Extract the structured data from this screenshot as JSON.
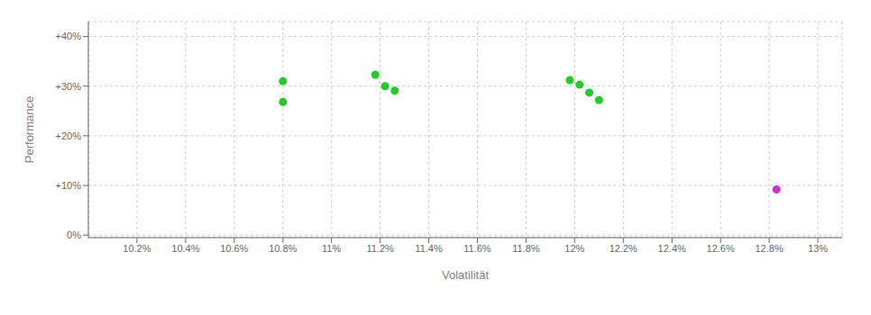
{
  "chart_data": {
    "type": "scatter",
    "xlabel": "Volatilität",
    "ylabel": "Performance",
    "xlim": [
      0.1,
      0.131
    ],
    "ylim": [
      -0.005,
      0.43
    ],
    "xticks": [
      {
        "value": 0.102,
        "label": "10.2%"
      },
      {
        "value": 0.104,
        "label": "10.4%"
      },
      {
        "value": 0.106,
        "label": "10.6%"
      },
      {
        "value": 0.108,
        "label": "10.8%"
      },
      {
        "value": 0.11,
        "label": "11%"
      },
      {
        "value": 0.112,
        "label": "11.2%"
      },
      {
        "value": 0.114,
        "label": "11.4%"
      },
      {
        "value": 0.116,
        "label": "11.6%"
      },
      {
        "value": 0.118,
        "label": "11.8%"
      },
      {
        "value": 0.12,
        "label": "12%"
      },
      {
        "value": 0.122,
        "label": "12.2%"
      },
      {
        "value": 0.124,
        "label": "12.4%"
      },
      {
        "value": 0.126,
        "label": "12.6%"
      },
      {
        "value": 0.128,
        "label": "12.8%"
      },
      {
        "value": 0.13,
        "label": "13%"
      }
    ],
    "yticks": [
      {
        "value": 0.0,
        "label": "0%"
      },
      {
        "value": 0.1,
        "label": "+10%"
      },
      {
        "value": 0.2,
        "label": "+20%"
      },
      {
        "value": 0.3,
        "label": "+30%"
      },
      {
        "value": 0.4,
        "label": "+40%"
      }
    ],
    "grid": true,
    "series": [
      {
        "color": "#22cc22",
        "x": [
          0.108,
          0.108,
          0.1118,
          0.1122,
          0.1126,
          0.1198,
          0.1202,
          0.1206,
          0.121
        ],
        "values": [
          0.31,
          0.268,
          0.323,
          0.3,
          0.291,
          0.312,
          0.303,
          0.287,
          0.272
        ]
      },
      {
        "color": "#cc33cc",
        "x": [
          0.1283
        ],
        "values": [
          0.092
        ]
      }
    ]
  }
}
